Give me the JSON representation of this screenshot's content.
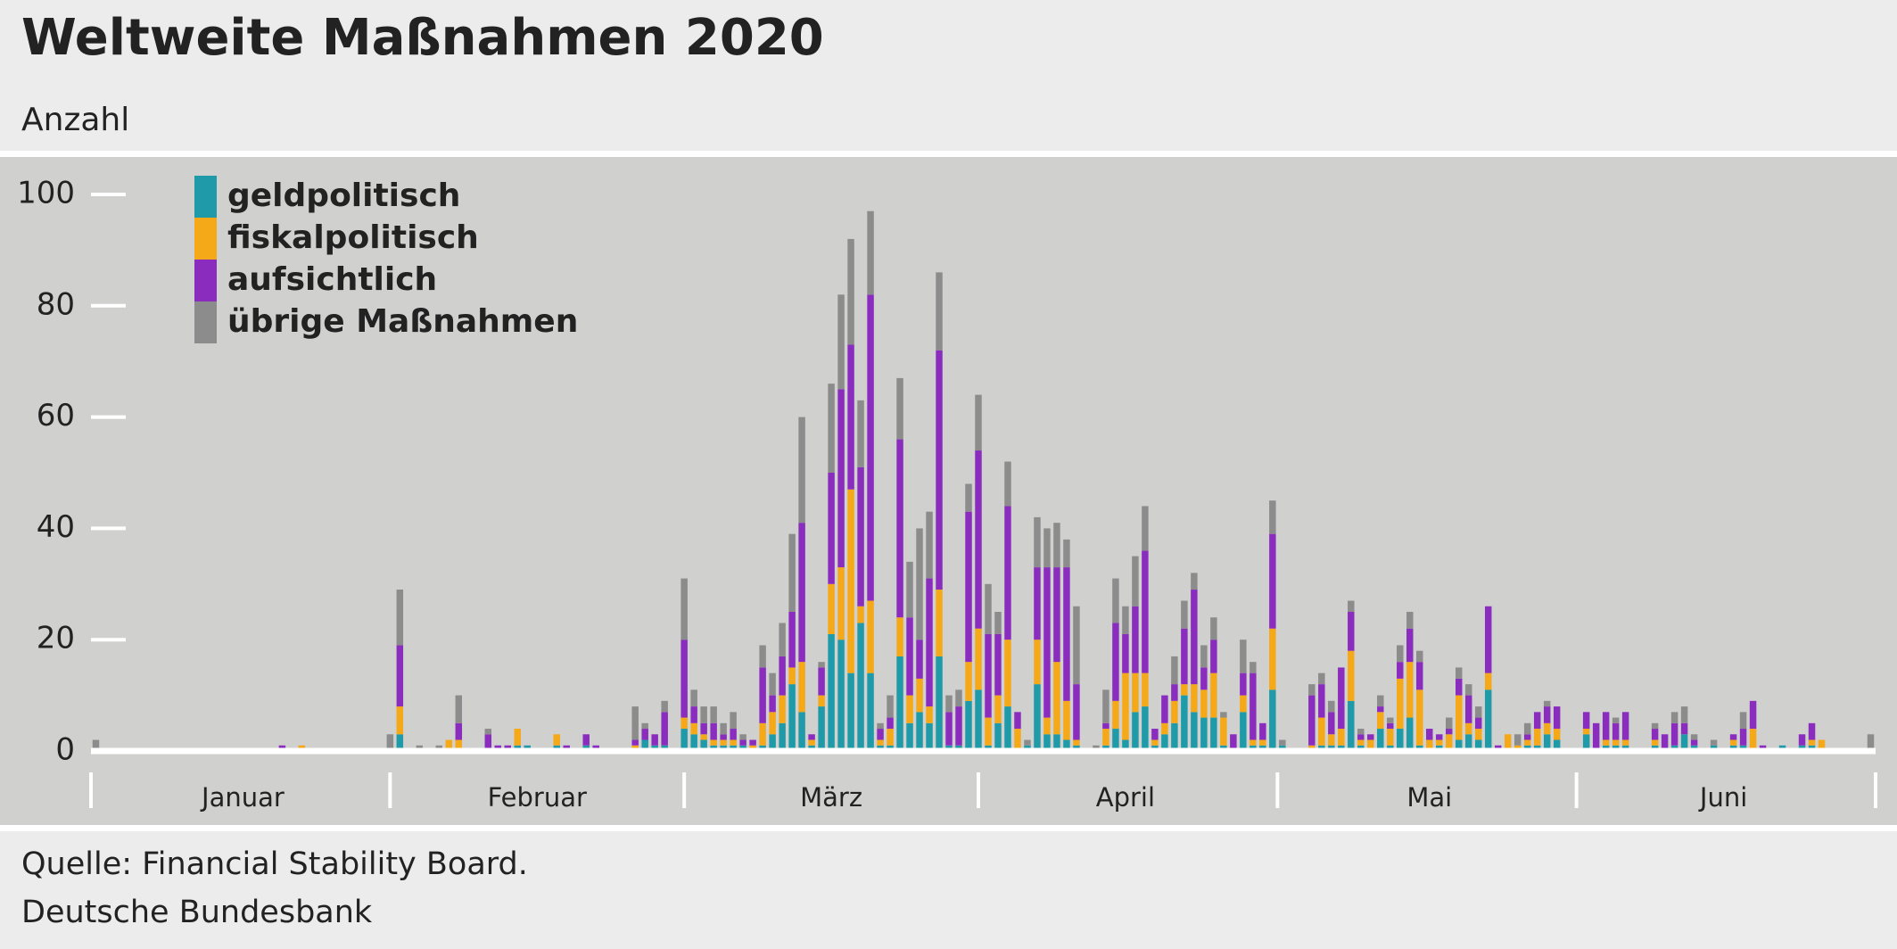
{
  "chart_data": {
    "type": "stacked_bar",
    "title": "Weltweite Maßnahmen 2020",
    "subtitle": "Anzahl",
    "source": "Quelle: Financial Stability Board.",
    "credit": "Deutsche Bundesbank",
    "legend": "upper left",
    "grid": false,
    "ylim": [
      0,
      100
    ],
    "yticks": [
      0,
      20,
      40,
      60,
      80,
      100
    ],
    "categories": [
      null,
      null,
      null,
      null,
      null,
      null,
      null,
      null,
      null,
      null,
      null,
      null,
      null,
      null,
      null,
      "Januar",
      null,
      null,
      null,
      null,
      null,
      null,
      null,
      null,
      null,
      null,
      null,
      null,
      null,
      null,
      null,
      null,
      null,
      null,
      null,
      null,
      null,
      null,
      null,
      null,
      null,
      null,
      null,
      null,
      null,
      "Februar",
      null,
      null,
      null,
      null,
      null,
      null,
      null,
      null,
      null,
      null,
      null,
      null,
      null,
      null,
      null,
      null,
      null,
      null,
      null,
      null,
      null,
      null,
      null,
      null,
      null,
      null,
      null,
      null,
      null,
      "März",
      null,
      null,
      null,
      null,
      null,
      null,
      null,
      null,
      null,
      null,
      null,
      null,
      null,
      null,
      null,
      null,
      null,
      null,
      null,
      null,
      null,
      null,
      null,
      null,
      null,
      null,
      null,
      null,
      null,
      "April",
      null,
      null,
      null,
      null,
      null,
      null,
      null,
      null,
      null,
      null,
      null,
      null,
      null,
      null,
      null,
      null,
      null,
      null,
      null,
      null,
      null,
      null,
      null,
      null,
      null,
      null,
      null,
      null,
      null,
      null,
      "Mai",
      null,
      null,
      null,
      null,
      null,
      null,
      null,
      null,
      null,
      null,
      null,
      null,
      null,
      null,
      null,
      null,
      null,
      null,
      null,
      null,
      null,
      null,
      null,
      null,
      null,
      null,
      null,
      null,
      null,
      "Juni",
      null,
      null,
      null,
      null,
      null,
      null,
      null,
      null,
      null,
      null,
      null,
      null,
      null,
      null,
      null
    ],
    "series": [
      {
        "name": "geldpolitisch",
        "color": "#1f9aa8",
        "values": [
          0,
          0,
          0,
          0,
          0,
          0,
          0,
          0,
          0,
          0,
          0,
          0,
          0,
          0,
          0,
          0,
          0,
          0,
          0,
          0,
          0,
          0,
          0,
          0,
          0,
          0,
          0,
          0,
          0,
          0,
          0,
          3,
          0,
          0,
          0,
          0,
          0,
          0,
          0,
          0,
          0,
          0,
          0,
          1,
          1,
          0,
          0,
          1,
          0,
          0,
          1,
          0,
          0,
          0,
          0,
          0,
          2,
          1,
          1,
          0,
          4,
          3,
          2,
          1,
          1,
          1,
          1,
          0,
          1,
          3,
          5,
          12,
          7,
          1,
          8,
          21,
          20,
          14,
          23,
          14,
          1,
          1,
          17,
          5,
          7,
          5,
          17,
          1,
          1,
          9,
          11,
          1,
          5,
          8,
          0,
          1,
          12,
          3,
          3,
          2,
          1,
          0,
          0,
          1,
          4,
          2,
          7,
          8,
          1,
          3,
          5,
          10,
          7,
          6,
          6,
          1,
          0,
          7,
          1,
          1,
          11,
          1,
          0,
          0,
          0,
          1,
          1,
          1,
          9,
          1,
          0,
          4,
          1,
          4,
          6,
          1,
          0,
          1,
          0,
          2,
          3,
          2,
          11,
          0,
          0,
          0,
          1,
          1,
          3,
          2,
          0,
          0,
          3,
          0,
          1,
          1,
          1,
          0,
          0,
          1,
          0,
          1,
          3,
          1,
          0,
          1,
          0,
          1,
          1,
          0,
          0,
          0,
          1,
          0,
          1,
          1,
          0,
          0,
          0,
          0,
          0,
          0
        ]
      },
      {
        "name": "fiskalpolitisch",
        "color": "#f5a918",
        "values": [
          0,
          0,
          0,
          0,
          0,
          0,
          0,
          0,
          0,
          0,
          0,
          0,
          0,
          0,
          0,
          0,
          0,
          0,
          0,
          0,
          0,
          1,
          0,
          0,
          0,
          0,
          0,
          0,
          0,
          0,
          0,
          5,
          0,
          0,
          0,
          0,
          2,
          2,
          0,
          0,
          0,
          0,
          0,
          3,
          0,
          0,
          0,
          2,
          0,
          0,
          0,
          0,
          0,
          0,
          0,
          1,
          0,
          0,
          0,
          0,
          2,
          2,
          1,
          1,
          1,
          1,
          0,
          1,
          4,
          4,
          5,
          3,
          9,
          1,
          2,
          9,
          13,
          33,
          3,
          13,
          1,
          3,
          7,
          5,
          6,
          3,
          12,
          0,
          0,
          7,
          11,
          5,
          5,
          12,
          4,
          0,
          8,
          3,
          13,
          7,
          1,
          0,
          0,
          3,
          5,
          12,
          7,
          6,
          1,
          2,
          4,
          2,
          5,
          5,
          8,
          5,
          0,
          3,
          1,
          1,
          11,
          0,
          0,
          0,
          1,
          5,
          2,
          3,
          9,
          1,
          2,
          3,
          3,
          9,
          10,
          10,
          2,
          1,
          3,
          8,
          2,
          2,
          3,
          0,
          3,
          1,
          1,
          3,
          2,
          2,
          0,
          0,
          1,
          0,
          1,
          1,
          1,
          0,
          0,
          1,
          0,
          0,
          0,
          0,
          0,
          0,
          0,
          1,
          0,
          4,
          0,
          0,
          0,
          0,
          0,
          1,
          2,
          0,
          0,
          0,
          0,
          0
        ]
      },
      {
        "name": "aufsichtlich",
        "color": "#8a2dbf",
        "values": [
          0,
          0,
          0,
          0,
          0,
          0,
          0,
          0,
          0,
          0,
          0,
          0,
          0,
          0,
          0,
          0,
          0,
          0,
          0,
          1,
          0,
          0,
          0,
          0,
          0,
          0,
          0,
          0,
          0,
          0,
          0,
          11,
          0,
          0,
          0,
          0,
          0,
          3,
          0,
          0,
          3,
          1,
          1,
          0,
          0,
          0,
          0,
          0,
          1,
          0,
          2,
          1,
          0,
          0,
          0,
          1,
          2,
          2,
          6,
          0,
          14,
          3,
          2,
          3,
          1,
          2,
          1,
          1,
          10,
          3,
          7,
          10,
          25,
          1,
          5,
          20,
          32,
          26,
          25,
          55,
          2,
          2,
          32,
          14,
          7,
          23,
          43,
          6,
          7,
          27,
          32,
          15,
          11,
          24,
          3,
          0,
          13,
          27,
          17,
          24,
          10,
          0,
          0,
          1,
          14,
          7,
          12,
          22,
          2,
          5,
          3,
          10,
          17,
          4,
          6,
          0,
          3,
          4,
          12,
          3,
          17,
          0,
          0,
          0,
          9,
          6,
          4,
          11,
          7,
          1,
          1,
          1,
          1,
          3,
          6,
          5,
          2,
          1,
          1,
          3,
          5,
          2,
          12,
          1,
          0,
          0,
          1,
          3,
          3,
          4,
          0,
          0,
          3,
          5,
          5,
          3,
          5,
          0,
          0,
          2,
          3,
          4,
          2,
          1,
          0,
          0,
          0,
          1,
          3,
          5,
          1,
          0,
          0,
          0,
          2,
          3,
          0,
          0,
          0,
          0,
          0,
          0
        ]
      },
      {
        "name": "übrige Maßnahmen",
        "color": "#8c8c8c",
        "values": [
          2,
          0,
          0,
          0,
          0,
          0,
          0,
          0,
          0,
          0,
          0,
          0,
          0,
          0,
          0,
          0,
          0,
          0,
          0,
          0,
          0,
          0,
          0,
          0,
          0,
          0,
          0,
          0,
          0,
          0,
          3,
          10,
          0,
          1,
          0,
          1,
          0,
          5,
          0,
          0,
          1,
          0,
          0,
          0,
          0,
          0,
          0,
          0,
          0,
          0,
          0,
          0,
          0,
          0,
          0,
          6,
          1,
          0,
          2,
          0,
          11,
          3,
          3,
          3,
          2,
          3,
          1,
          0,
          4,
          4,
          6,
          14,
          19,
          0,
          1,
          16,
          17,
          19,
          12,
          15,
          1,
          4,
          11,
          10,
          20,
          12,
          14,
          3,
          3,
          5,
          10,
          9,
          4,
          8,
          0,
          1,
          9,
          7,
          8,
          5,
          14,
          0,
          1,
          6,
          8,
          5,
          9,
          8,
          0,
          0,
          5,
          5,
          3,
          4,
          4,
          1,
          0,
          6,
          2,
          0,
          6,
          1,
          0,
          0,
          2,
          2,
          2,
          0,
          2,
          1,
          0,
          2,
          1,
          3,
          3,
          2,
          0,
          0,
          2,
          2,
          2,
          2,
          0,
          0,
          0,
          2,
          2,
          0,
          1,
          0,
          0,
          0,
          0,
          0,
          0,
          1,
          0,
          0,
          0,
          1,
          0,
          2,
          3,
          1,
          0,
          1,
          0,
          0,
          3,
          0,
          0,
          0,
          0,
          0,
          0,
          0,
          0,
          0,
          0,
          0,
          0,
          3
        ]
      }
    ]
  }
}
